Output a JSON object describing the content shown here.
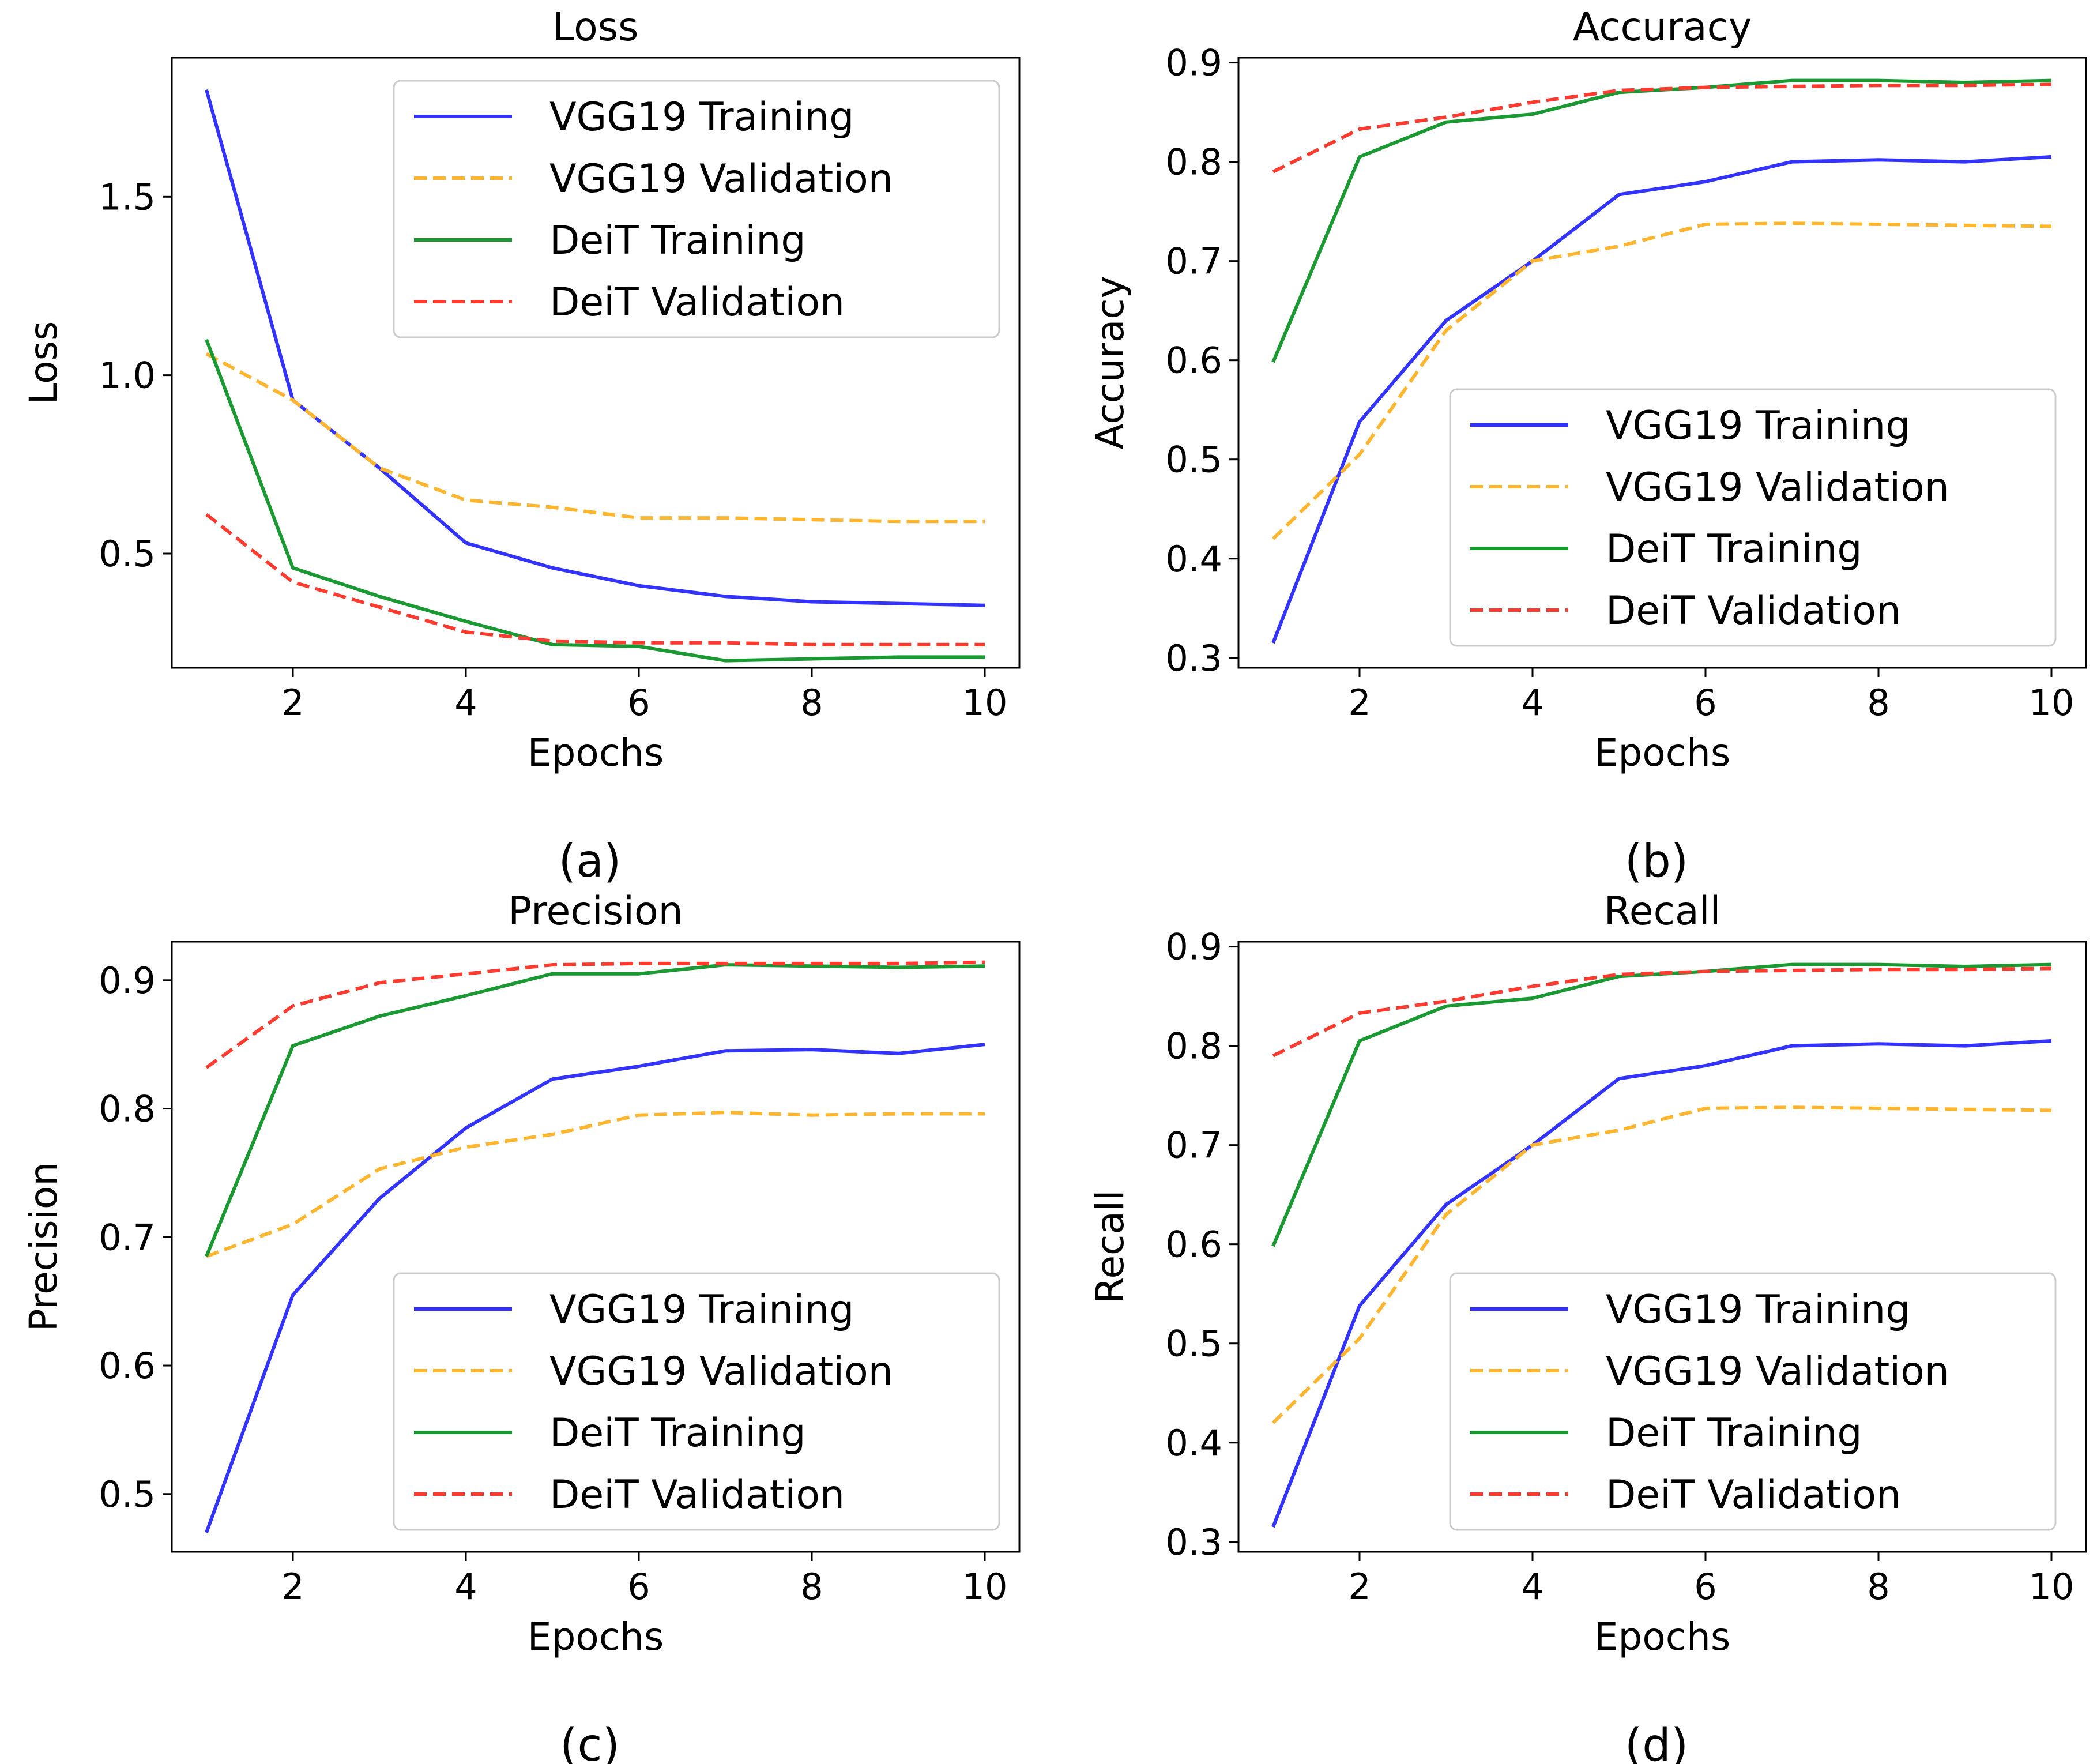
{
  "chart_data": [
    {
      "type": "line",
      "panel": "(a)",
      "title": "Loss",
      "xlabel": "Epochs",
      "ylabel": "Loss",
      "xlim": [
        0.6,
        10.4
      ],
      "ylim": [
        0.18,
        1.89
      ],
      "xticks": [
        2,
        4,
        6,
        8,
        10
      ],
      "yticks": [
        0.5,
        1.0,
        1.5
      ],
      "ytick_labels": [
        "0.5",
        "1.0",
        "1.5"
      ],
      "legend_position": "top-right",
      "x": [
        1,
        2,
        3,
        4,
        5,
        6,
        7,
        8,
        9,
        10
      ],
      "series": [
        {
          "name": "VGG19 Training",
          "color": "#3333ff",
          "dash": "solid",
          "values": [
            1.8,
            0.93,
            0.74,
            0.53,
            0.46,
            0.41,
            0.38,
            0.365,
            0.36,
            0.355
          ]
        },
        {
          "name": "VGG19 Validation",
          "color": "#ffb52e",
          "dash": "dashed",
          "values": [
            1.06,
            0.93,
            0.74,
            0.65,
            0.63,
            0.6,
            0.6,
            0.595,
            0.59,
            0.59
          ]
        },
        {
          "name": "DeiT Training",
          "color": "#1a9933",
          "dash": "solid",
          "values": [
            1.1,
            0.46,
            0.38,
            0.31,
            0.245,
            0.24,
            0.2,
            0.205,
            0.21,
            0.21
          ]
        },
        {
          "name": "DeiT Validation",
          "color": "#ff3b30",
          "dash": "dashed",
          "values": [
            0.61,
            0.42,
            0.35,
            0.28,
            0.255,
            0.25,
            0.25,
            0.245,
            0.245,
            0.245
          ]
        }
      ]
    },
    {
      "type": "line",
      "panel": "(b)",
      "title": "Accuracy",
      "xlabel": "Epochs",
      "ylabel": "Accuracy",
      "xlim": [
        0.6,
        10.4
      ],
      "ylim": [
        0.29,
        0.905
      ],
      "xticks": [
        2,
        4,
        6,
        8,
        10
      ],
      "yticks": [
        0.3,
        0.4,
        0.5,
        0.6,
        0.7,
        0.8,
        0.9
      ],
      "ytick_labels": [
        "0.3",
        "0.4",
        "0.5",
        "0.6",
        "0.7",
        "0.8",
        "0.9"
      ],
      "legend_position": "lower-right",
      "x": [
        1,
        2,
        3,
        4,
        5,
        6,
        7,
        8,
        9,
        10
      ],
      "series": [
        {
          "name": "VGG19 Training",
          "color": "#3333ff",
          "dash": "solid",
          "values": [
            0.315,
            0.538,
            0.64,
            0.7,
            0.767,
            0.78,
            0.8,
            0.802,
            0.8,
            0.805
          ]
        },
        {
          "name": "VGG19 Validation",
          "color": "#ffb52e",
          "dash": "dashed",
          "values": [
            0.42,
            0.505,
            0.63,
            0.7,
            0.715,
            0.737,
            0.738,
            0.737,
            0.736,
            0.735
          ]
        },
        {
          "name": "DeiT Training",
          "color": "#1a9933",
          "dash": "solid",
          "values": [
            0.598,
            0.805,
            0.84,
            0.848,
            0.87,
            0.875,
            0.882,
            0.882,
            0.88,
            0.882
          ]
        },
        {
          "name": "DeiT Validation",
          "color": "#ff3b30",
          "dash": "dashed",
          "values": [
            0.79,
            0.833,
            0.845,
            0.86,
            0.872,
            0.875,
            0.876,
            0.877,
            0.877,
            0.878
          ]
        }
      ]
    },
    {
      "type": "line",
      "panel": "(c)",
      "title": "Precision",
      "xlabel": "Epochs",
      "ylabel": "Precision",
      "xlim": [
        0.6,
        10.4
      ],
      "ylim": [
        0.455,
        0.93
      ],
      "xticks": [
        2,
        4,
        6,
        8,
        10
      ],
      "yticks": [
        0.5,
        0.6,
        0.7,
        0.8,
        0.9
      ],
      "ytick_labels": [
        "0.5",
        "0.6",
        "0.7",
        "0.8",
        "0.9"
      ],
      "legend_position": "lower-right",
      "x": [
        1,
        2,
        3,
        4,
        5,
        6,
        7,
        8,
        9,
        10
      ],
      "series": [
        {
          "name": "VGG19 Training",
          "color": "#3333ff",
          "dash": "solid",
          "values": [
            0.47,
            0.655,
            0.73,
            0.785,
            0.823,
            0.833,
            0.845,
            0.846,
            0.843,
            0.85
          ]
        },
        {
          "name": "VGG19 Validation",
          "color": "#ffb52e",
          "dash": "dashed",
          "values": [
            0.685,
            0.71,
            0.753,
            0.77,
            0.78,
            0.795,
            0.797,
            0.795,
            0.796,
            0.796
          ]
        },
        {
          "name": "DeiT Training",
          "color": "#1a9933",
          "dash": "solid",
          "values": [
            0.685,
            0.849,
            0.872,
            0.888,
            0.905,
            0.905,
            0.912,
            0.911,
            0.91,
            0.911
          ]
        },
        {
          "name": "DeiT Validation",
          "color": "#ff3b30",
          "dash": "dashed",
          "values": [
            0.832,
            0.88,
            0.898,
            0.905,
            0.912,
            0.913,
            0.913,
            0.913,
            0.913,
            0.914
          ]
        }
      ]
    },
    {
      "type": "line",
      "panel": "(d)",
      "title": "Recall",
      "xlabel": "Epochs",
      "ylabel": "Recall",
      "xlim": [
        0.6,
        10.4
      ],
      "ylim": [
        0.29,
        0.905
      ],
      "xticks": [
        2,
        4,
        6,
        8,
        10
      ],
      "yticks": [
        0.3,
        0.4,
        0.5,
        0.6,
        0.7,
        0.8,
        0.9
      ],
      "ytick_labels": [
        "0.3",
        "0.4",
        "0.5",
        "0.6",
        "0.7",
        "0.8",
        "0.9"
      ],
      "legend_position": "lower-right",
      "x": [
        1,
        2,
        3,
        4,
        5,
        6,
        7,
        8,
        9,
        10
      ],
      "series": [
        {
          "name": "VGG19 Training",
          "color": "#3333ff",
          "dash": "solid",
          "values": [
            0.315,
            0.538,
            0.64,
            0.7,
            0.767,
            0.78,
            0.8,
            0.802,
            0.8,
            0.805
          ]
        },
        {
          "name": "VGG19 Validation",
          "color": "#ffb52e",
          "dash": "dashed",
          "values": [
            0.42,
            0.505,
            0.63,
            0.7,
            0.715,
            0.737,
            0.738,
            0.737,
            0.736,
            0.735
          ]
        },
        {
          "name": "DeiT Training",
          "color": "#1a9933",
          "dash": "solid",
          "values": [
            0.598,
            0.805,
            0.84,
            0.848,
            0.87,
            0.875,
            0.882,
            0.882,
            0.88,
            0.882
          ]
        },
        {
          "name": "DeiT Validation",
          "color": "#ff3b30",
          "dash": "dashed",
          "values": [
            0.79,
            0.833,
            0.845,
            0.86,
            0.872,
            0.875,
            0.876,
            0.877,
            0.877,
            0.878
          ]
        }
      ]
    }
  ]
}
